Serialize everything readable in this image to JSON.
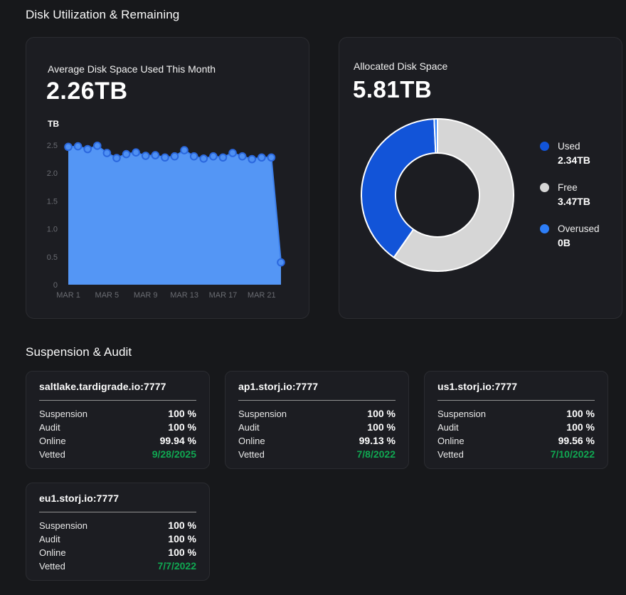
{
  "sections": {
    "disk": "Disk Utilization & Remaining",
    "audit": "Suspension & Audit"
  },
  "avg_card": {
    "title": "Average Disk Space Used This Month",
    "value": "2.26TB",
    "unit": "TB"
  },
  "alloc_card": {
    "title": "Allocated Disk Space",
    "value": "5.81TB"
  },
  "theme": {
    "page_bg": "#17181b",
    "card_bg": "#1c1d22",
    "area_blue": "#5496f5",
    "used_blue": "#1254d8",
    "free_gray": "#d6d6d6",
    "overused_blue": "#2d7ef8",
    "vetted_green": "#10a852"
  },
  "chart_data": [
    {
      "type": "area",
      "title": "Average Disk Space Used This Month",
      "ylabel": "TB",
      "x_unit": "day of March",
      "x": [
        1,
        2,
        3,
        4,
        5,
        6,
        7,
        8,
        9,
        10,
        11,
        12,
        13,
        14,
        15,
        16,
        17,
        18,
        19,
        20,
        21,
        22,
        23
      ],
      "values": [
        2.47,
        2.48,
        2.43,
        2.49,
        2.36,
        2.27,
        2.34,
        2.37,
        2.31,
        2.32,
        2.28,
        2.3,
        2.41,
        2.3,
        2.26,
        2.3,
        2.28,
        2.36,
        2.3,
        2.25,
        2.28,
        2.28,
        0.4
      ],
      "ylim": [
        0,
        2.5
      ],
      "y_ticks": {
        "values": [
          0,
          0.5,
          1,
          1.5,
          2,
          2.5
        ],
        "labels": [
          "0",
          "0.5",
          "1.0",
          "1.5",
          "2.0",
          "2.5"
        ]
      },
      "x_ticks": {
        "days": [
          1,
          5,
          9,
          13,
          17,
          21
        ],
        "labels": [
          "MAR 1",
          "MAR 5",
          "MAR 9",
          "MAR 13",
          "MAR 17",
          "MAR 21"
        ]
      },
      "grid": false,
      "colors": {
        "area": "#5496f5",
        "line": "#3f82ee",
        "point": "#4e90f3",
        "point_stroke": "#2b68de"
      }
    },
    {
      "type": "pie",
      "donut": true,
      "title": "Allocated Disk Space",
      "total_label": "5.81TB",
      "slices": [
        {
          "label": "Used",
          "value_tb": 2.34,
          "display": "2.34TB",
          "color": "#1254d8"
        },
        {
          "label": "Free",
          "value_tb": 3.47,
          "display": "3.47TB",
          "color": "#d6d6d6"
        },
        {
          "label": "Overused",
          "value_tb": 0,
          "display": "0B",
          "color": "#2d7ef8"
        }
      ],
      "layout": {
        "start": "top",
        "direction": "clockwise",
        "draw_order": [
          "Free",
          "Used",
          "Overused"
        ],
        "legend_position": "right"
      }
    }
  ],
  "satellites": [
    {
      "address": "saltlake.tardigrade.io:7777",
      "rows": [
        {
          "label": "Suspension",
          "value": "100 %"
        },
        {
          "label": "Audit",
          "value": "100 %"
        },
        {
          "label": "Online",
          "value": "99.94 %"
        },
        {
          "label": "Vetted",
          "value": "9/28/2025",
          "highlight": "green"
        }
      ]
    },
    {
      "address": "ap1.storj.io:7777",
      "rows": [
        {
          "label": "Suspension",
          "value": "100 %"
        },
        {
          "label": "Audit",
          "value": "100 %"
        },
        {
          "label": "Online",
          "value": "99.13 %"
        },
        {
          "label": "Vetted",
          "value": "7/8/2022",
          "highlight": "green"
        }
      ]
    },
    {
      "address": "us1.storj.io:7777",
      "rows": [
        {
          "label": "Suspension",
          "value": "100 %"
        },
        {
          "label": "Audit",
          "value": "100 %"
        },
        {
          "label": "Online",
          "value": "99.56 %"
        },
        {
          "label": "Vetted",
          "value": "7/10/2022",
          "highlight": "green"
        }
      ]
    },
    {
      "address": "eu1.storj.io:7777",
      "rows": [
        {
          "label": "Suspension",
          "value": "100 %"
        },
        {
          "label": "Audit",
          "value": "100 %"
        },
        {
          "label": "Online",
          "value": "100 %"
        },
        {
          "label": "Vetted",
          "value": "7/7/2022",
          "highlight": "green"
        }
      ]
    }
  ]
}
